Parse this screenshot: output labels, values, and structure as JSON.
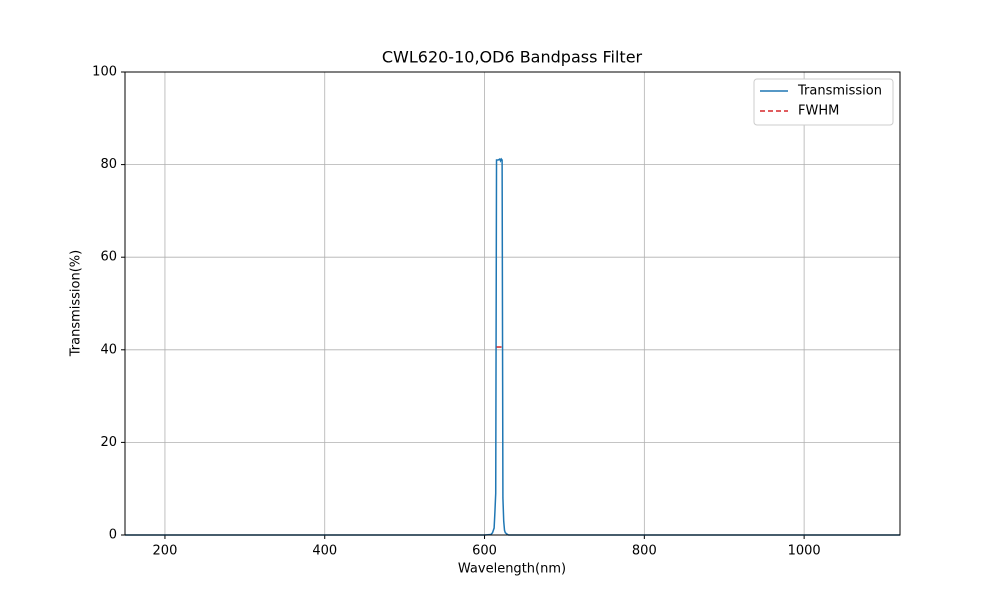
{
  "chart_data": {
    "type": "line",
    "title": "CWL620-10,OD6 Bandpass Filter",
    "x_label": "Wavelength(nm)",
    "y_label": "Transmission(%)",
    "xlim": [
      150,
      1120
    ],
    "ylim": [
      0,
      100
    ],
    "xticks": [
      200,
      400,
      600,
      800,
      1000
    ],
    "yticks": [
      0,
      20,
      40,
      60,
      80,
      100
    ],
    "grid": true,
    "legend": "upper right",
    "series": [
      {
        "name": "Transmission",
        "color": "#1f77b4",
        "dash": false,
        "x": [
          150,
          400,
          600,
          608,
          610,
          612,
          613,
          614,
          615,
          617,
          619,
          620,
          621,
          622,
          623,
          624,
          625,
          626,
          628,
          630,
          700,
          900,
          1120
        ],
        "values": [
          0,
          0,
          0,
          0.1,
          0.5,
          1.5,
          5,
          9,
          81,
          81,
          81.2,
          80.8,
          81.2,
          81,
          8,
          3,
          1,
          0.5,
          0.2,
          0,
          0,
          0,
          0
        ]
      },
      {
        "name": "FWHM",
        "color": "#d62728",
        "dash": true,
        "x": [
          615,
          624
        ],
        "values": [
          40.6,
          40.6
        ]
      }
    ]
  }
}
